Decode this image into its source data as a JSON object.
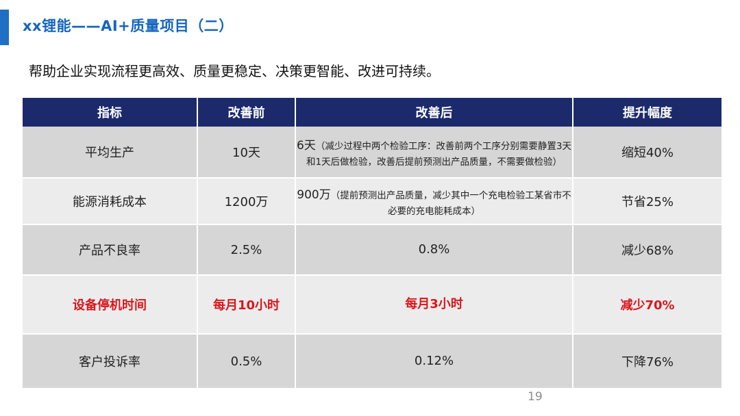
{
  "header": {
    "title": "xx锂能——AI+质量项目（二）",
    "subtitle": "帮助企业实现流程更高效、质量更稳定、决策更智能、改进可持续。"
  },
  "table": {
    "headers": [
      "指标",
      "改善前",
      "改善后",
      "提升幅度"
    ],
    "rows": [
      {
        "indicator": "平均生产",
        "before": "10天",
        "after_main": "6天",
        "after_note": "（减少过程中两个检验工序：改善前两个工序分别需要静置3天和1天后做检验，改善后提前预测出产品质量，不需要做检验）",
        "improvement": "缩短40%"
      },
      {
        "indicator": "能源消耗成本",
        "before": "1200万",
        "after_main": "900万",
        "after_note": "（提前预测出产品质量，减少其中一个充电检验工某省市不必要的充电能耗成本）",
        "improvement": "节省25%"
      },
      {
        "indicator": "产品不良率",
        "before": "2.5%",
        "after_main": "0.8%",
        "after_note": "",
        "improvement": "减少68%"
      },
      {
        "indicator": "设备停机时间",
        "before": "每月10小时",
        "after_main": "每月3小时",
        "after_note": "",
        "improvement": "减少70%"
      },
      {
        "indicator": "客户投诉率",
        "before": "0.5%",
        "after_main": "0.12%",
        "after_note": "",
        "improvement": "下降76%"
      }
    ]
  },
  "footer": {
    "page_number": "19"
  },
  "colors": {
    "accent": "#1f6fc4",
    "title": "#1565c0",
    "header_bg": "#1c2a6b",
    "highlight": "#d9161c",
    "row_dark": "#d6d6d6",
    "row_light": "#ececec"
  }
}
